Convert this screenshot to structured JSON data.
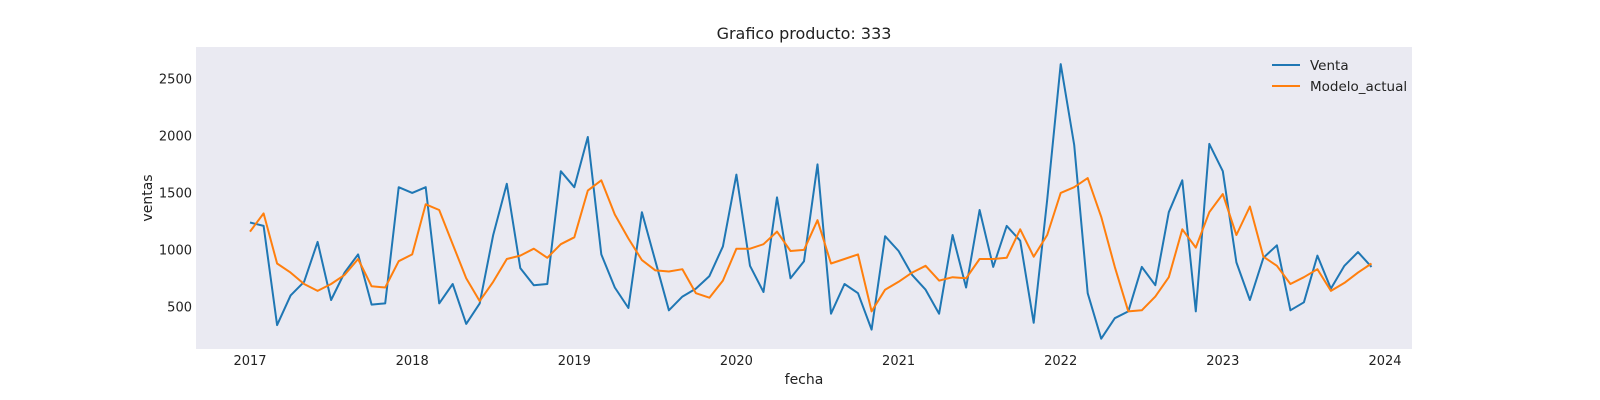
{
  "chart_data": {
    "type": "line",
    "title": "Grafico producto: 333",
    "xlabel": "fecha",
    "ylabel": "ventas",
    "x_ticks": [
      "2017",
      "2018",
      "2019",
      "2020",
      "2021",
      "2022",
      "2023",
      "2024"
    ],
    "y_ticks": [
      500,
      1000,
      1500,
      2000,
      2500
    ],
    "xlim": [
      "2016-09",
      "2024-03"
    ],
    "ylim": [
      130,
      2780
    ],
    "grid": false,
    "legend_position": "top-right",
    "x": [
      "2017-01",
      "2017-02",
      "2017-03",
      "2017-04",
      "2017-05",
      "2017-06",
      "2017-07",
      "2017-08",
      "2017-09",
      "2017-10",
      "2017-11",
      "2017-12",
      "2018-01",
      "2018-02",
      "2018-03",
      "2018-04",
      "2018-05",
      "2018-06",
      "2018-07",
      "2018-08",
      "2018-09",
      "2018-10",
      "2018-11",
      "2018-12",
      "2019-01",
      "2019-02",
      "2019-03",
      "2019-04",
      "2019-05",
      "2019-06",
      "2019-07",
      "2019-08",
      "2019-09",
      "2019-10",
      "2019-11",
      "2019-12",
      "2020-01",
      "2020-02",
      "2020-03",
      "2020-04",
      "2020-05",
      "2020-06",
      "2020-07",
      "2020-08",
      "2020-09",
      "2020-10",
      "2020-11",
      "2020-12",
      "2021-01",
      "2021-02",
      "2021-03",
      "2021-04",
      "2021-05",
      "2021-06",
      "2021-07",
      "2021-08",
      "2021-09",
      "2021-10",
      "2021-11",
      "2021-12",
      "2022-01",
      "2022-02",
      "2022-03",
      "2022-04",
      "2022-05",
      "2022-06",
      "2022-07",
      "2022-08",
      "2022-09",
      "2022-10",
      "2022-11",
      "2022-12",
      "2023-01",
      "2023-02",
      "2023-03",
      "2023-04",
      "2023-05",
      "2023-06",
      "2023-07",
      "2023-08",
      "2023-09",
      "2023-10",
      "2023-11",
      "2023-12"
    ],
    "series": [
      {
        "name": "Venta",
        "color": "#1f77b4",
        "values": [
          1240,
          1210,
          340,
          600,
          720,
          1070,
          560,
          800,
          960,
          520,
          530,
          1550,
          1500,
          1550,
          530,
          700,
          350,
          530,
          1130,
          1580,
          840,
          690,
          700,
          1690,
          1550,
          1990,
          960,
          670,
          490,
          1330,
          900,
          470,
          590,
          660,
          770,
          1030,
          1660,
          860,
          630,
          1460,
          750,
          900,
          1750,
          440,
          700,
          620,
          300,
          1120,
          990,
          780,
          650,
          440,
          1130,
          670,
          1350,
          850,
          1210,
          1080,
          360,
          1440,
          2630,
          1920,
          620,
          220,
          400,
          460,
          850,
          690,
          1330,
          1610,
          460,
          1930,
          1690,
          890,
          560,
          930,
          1040,
          470,
          540,
          950,
          660,
          860,
          980,
          850
        ]
      },
      {
        "name": "Modelo_actual",
        "color": "#ff7f0e",
        "values": [
          1160,
          1320,
          880,
          800,
          700,
          640,
          700,
          780,
          920,
          680,
          670,
          900,
          960,
          1400,
          1350,
          1050,
          750,
          550,
          720,
          920,
          950,
          1010,
          930,
          1050,
          1110,
          1520,
          1610,
          1310,
          1100,
          910,
          820,
          810,
          830,
          620,
          580,
          730,
          1010,
          1010,
          1050,
          1160,
          990,
          1000,
          1260,
          880,
          920,
          960,
          460,
          650,
          720,
          800,
          860,
          730,
          760,
          750,
          920,
          920,
          930,
          1180,
          940,
          1130,
          1500,
          1550,
          1630,
          1290,
          850,
          460,
          470,
          590,
          760,
          1180,
          1020,
          1330,
          1490,
          1130,
          1380,
          940,
          860,
          700,
          760,
          830,
          640,
          710,
          800,
          880
        ]
      }
    ]
  }
}
